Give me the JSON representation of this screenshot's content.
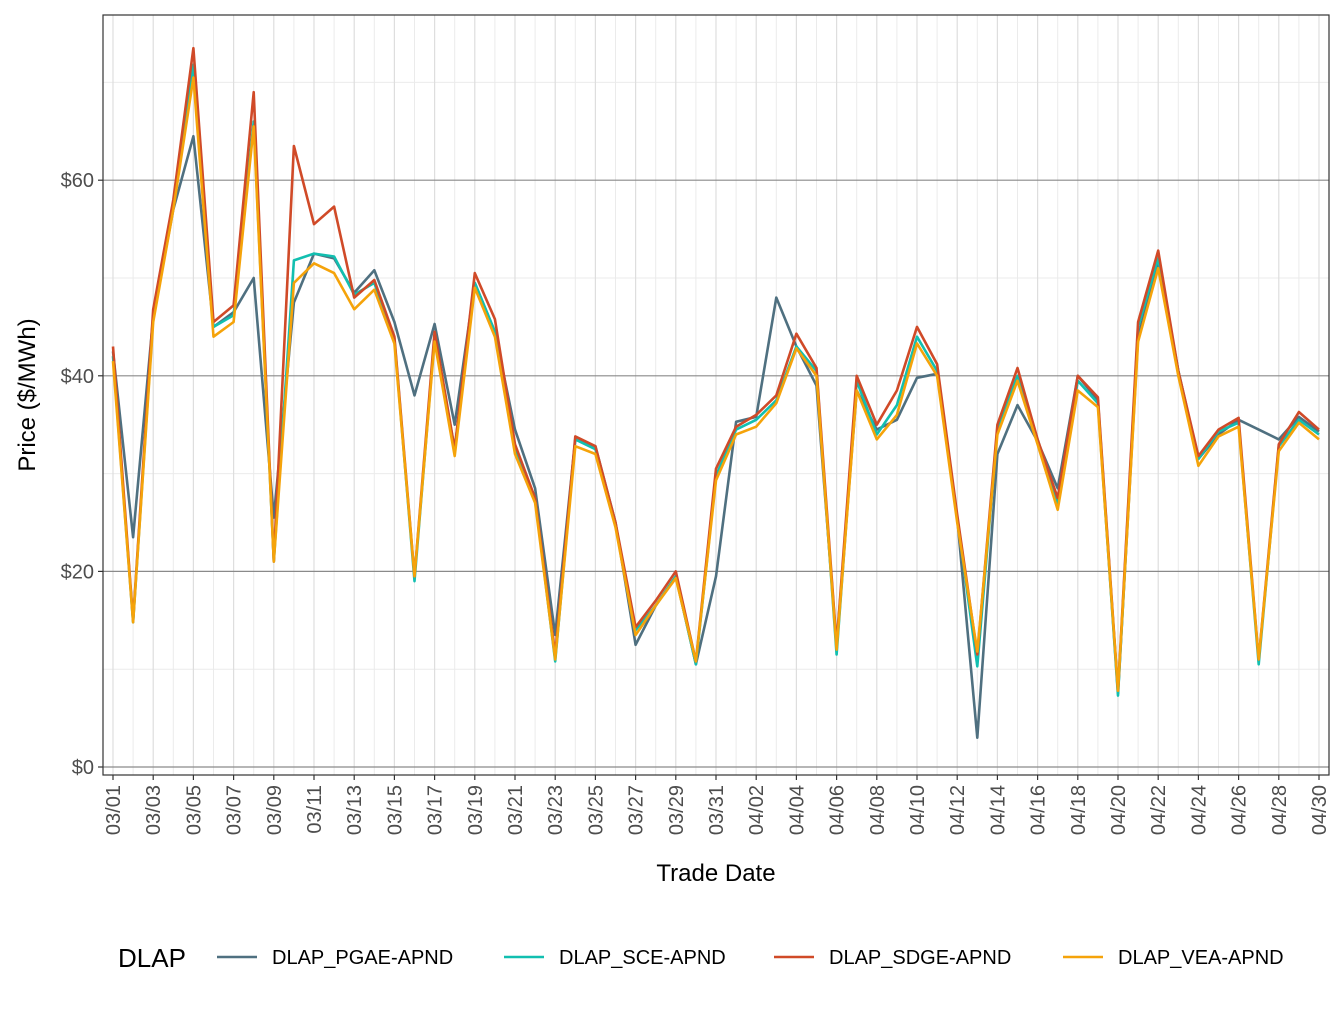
{
  "chart_data": {
    "type": "line",
    "title": "",
    "xlabel": "Trade Date",
    "ylabel": "Price ($/MWh)",
    "ylim": [
      0,
      75
    ],
    "y_ticks": [
      0,
      20,
      40,
      60
    ],
    "y_tick_labels": [
      "$0",
      "$20",
      "$40",
      "$60"
    ],
    "x_ticks": [
      "03/01",
      "03/03",
      "03/05",
      "03/07",
      "03/09",
      "03/11",
      "03/13",
      "03/15",
      "03/17",
      "03/19",
      "03/21",
      "03/23",
      "03/25",
      "03/27",
      "03/29",
      "03/31",
      "04/02",
      "04/04",
      "04/06",
      "04/08",
      "04/10",
      "04/12",
      "04/14",
      "04/16",
      "04/18",
      "04/20",
      "04/22",
      "04/24",
      "04/26",
      "04/28",
      "04/30"
    ],
    "x": [
      "03/01",
      "03/02",
      "03/03",
      "03/04",
      "03/05",
      "03/06",
      "03/07",
      "03/08",
      "03/09",
      "03/10",
      "03/11",
      "03/12",
      "03/13",
      "03/14",
      "03/15",
      "03/16",
      "03/17",
      "03/18",
      "03/19",
      "03/20",
      "03/21",
      "03/22",
      "03/23",
      "03/24",
      "03/25",
      "03/26",
      "03/27",
      "03/28",
      "03/29",
      "03/30",
      "03/31",
      "04/01",
      "04/02",
      "04/03",
      "04/04",
      "04/05",
      "04/06",
      "04/07",
      "04/08",
      "04/09",
      "04/10",
      "04/11",
      "04/12",
      "04/13",
      "04/14",
      "04/15",
      "04/16",
      "04/17",
      "04/18",
      "04/19",
      "04/20",
      "04/21",
      "04/22",
      "04/23",
      "04/24",
      "04/25",
      "04/26",
      "04/27",
      "04/28",
      "04/29",
      "04/30"
    ],
    "grid": true,
    "legend_position": "bottom",
    "legend_title": "DLAP",
    "series": [
      {
        "name": "DLAP_PGAE-APND",
        "color": "#4f7080",
        "values": [
          42.5,
          23.5,
          46.0,
          57.0,
          64.5,
          45.0,
          46.5,
          50.0,
          25.5,
          47.5,
          52.5,
          52.0,
          48.5,
          50.8,
          45.5,
          38.0,
          45.3,
          35.0,
          49.5,
          44.5,
          34.5,
          28.5,
          13.5,
          33.5,
          32.8,
          25.0,
          12.5,
          16.5,
          19.5,
          10.5,
          19.5,
          35.3,
          35.8,
          48.0,
          43.0,
          39.0,
          12.5,
          38.5,
          34.5,
          35.5,
          39.8,
          40.2,
          25.5,
          3.0,
          32.0,
          37.0,
          33.3,
          28.5,
          40.0,
          37.5,
          7.5,
          44.0,
          51.5,
          40.5,
          31.5,
          34.0,
          35.5,
          34.5,
          33.5,
          35.8,
          34.3
        ]
      },
      {
        "name": "DLAP_SCE-APND",
        "color": "#12bfb0",
        "values": [
          42.0,
          14.8,
          46.0,
          57.5,
          71.8,
          45.0,
          46.2,
          66.0,
          21.0,
          51.8,
          52.5,
          52.2,
          48.3,
          49.5,
          43.8,
          19.0,
          44.0,
          32.5,
          49.5,
          44.5,
          32.5,
          27.5,
          10.8,
          33.5,
          32.5,
          24.8,
          14.0,
          16.5,
          19.5,
          10.5,
          29.8,
          34.5,
          35.5,
          37.5,
          43.0,
          40.5,
          11.5,
          39.5,
          34.0,
          37.0,
          44.0,
          40.5,
          25.5,
          10.3,
          34.5,
          40.0,
          33.5,
          27.0,
          39.5,
          37.2,
          7.3,
          45.0,
          52.0,
          40.5,
          31.5,
          34.3,
          35.2,
          10.5,
          32.8,
          35.5,
          34.0
        ]
      },
      {
        "name": "DLAP_SDGE-APND",
        "color": "#d04a28",
        "values": [
          43.0,
          15.0,
          46.8,
          58.0,
          73.5,
          45.5,
          47.2,
          69.0,
          21.0,
          63.5,
          55.5,
          57.3,
          48.0,
          49.8,
          44.0,
          19.5,
          44.5,
          32.5,
          50.5,
          45.8,
          33.0,
          27.5,
          11.5,
          33.8,
          32.8,
          25.0,
          14.3,
          17.0,
          20.0,
          10.8,
          30.5,
          34.8,
          36.0,
          38.0,
          44.3,
          40.8,
          12.5,
          40.0,
          35.0,
          38.5,
          45.0,
          41.2,
          25.8,
          11.5,
          35.0,
          40.8,
          33.5,
          27.5,
          40.0,
          37.8,
          7.8,
          45.5,
          52.8,
          40.5,
          31.8,
          34.5,
          35.7,
          11.0,
          33.0,
          36.3,
          34.5
        ]
      },
      {
        "name": "DLAP_VEA-APND",
        "color": "#f5a30a",
        "values": [
          41.5,
          14.8,
          45.5,
          57.0,
          70.5,
          44.0,
          45.5,
          65.5,
          21.0,
          49.5,
          51.5,
          50.5,
          46.8,
          48.8,
          43.3,
          19.5,
          43.5,
          31.8,
          49.0,
          44.0,
          32.0,
          27.0,
          11.0,
          32.8,
          32.0,
          24.5,
          13.5,
          16.5,
          19.3,
          10.8,
          29.3,
          34.0,
          34.8,
          37.2,
          42.8,
          40.0,
          12.0,
          38.5,
          33.5,
          36.0,
          43.3,
          40.0,
          25.0,
          11.8,
          34.0,
          39.5,
          33.0,
          26.3,
          38.5,
          36.8,
          7.8,
          43.5,
          51.0,
          40.0,
          30.8,
          33.8,
          34.8,
          11.0,
          32.3,
          35.2,
          33.5
        ]
      }
    ]
  }
}
